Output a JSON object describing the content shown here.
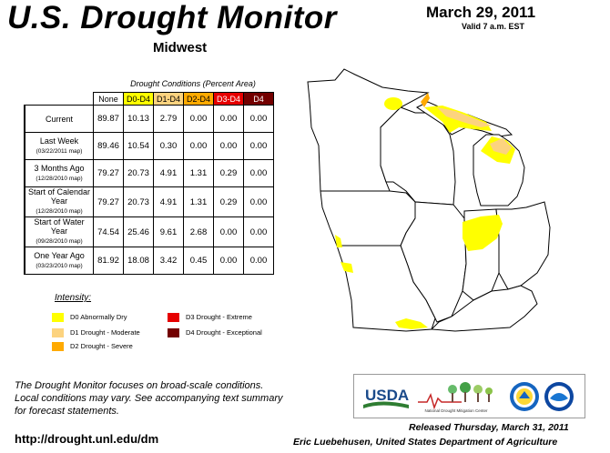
{
  "header": {
    "title": "U.S. Drought Monitor",
    "region": "Midwest",
    "date": "March 29, 2011",
    "valid": "Valid 7 a.m. EST"
  },
  "table": {
    "caption": "Drought Conditions (Percent Area)",
    "columns": [
      "None",
      "D0-D4",
      "D1-D4",
      "D2-D4",
      "D3-D4",
      "D4"
    ],
    "column_colors": [
      "#ffffff",
      "#ffff00",
      "#fcd37f",
      "#ffaa00",
      "#e60000",
      "#730000"
    ],
    "rows": [
      {
        "label": "Current",
        "sub": "",
        "values": [
          "89.87",
          "10.13",
          "2.79",
          "0.00",
          "0.00",
          "0.00"
        ]
      },
      {
        "label": "Last Week",
        "sub": "(03/22/2011 map)",
        "values": [
          "89.46",
          "10.54",
          "0.30",
          "0.00",
          "0.00",
          "0.00"
        ]
      },
      {
        "label": "3 Months Ago",
        "sub": "(12/28/2010 map)",
        "values": [
          "79.27",
          "20.73",
          "4.91",
          "1.31",
          "0.29",
          "0.00"
        ]
      },
      {
        "label": "Start of Calendar Year",
        "sub": "(12/28/2010 map)",
        "values": [
          "79.27",
          "20.73",
          "4.91",
          "1.31",
          "0.29",
          "0.00"
        ]
      },
      {
        "label": "Start of Water Year",
        "sub": "(09/28/2010 map)",
        "values": [
          "74.54",
          "25.46",
          "9.61",
          "2.68",
          "0.00",
          "0.00"
        ]
      },
      {
        "label": "One Year Ago",
        "sub": "(03/23/2010 map)",
        "values": [
          "81.92",
          "18.08",
          "3.42",
          "0.45",
          "0.00",
          "0.00"
        ]
      }
    ]
  },
  "legend": {
    "title": "Intensity:",
    "items": [
      {
        "label": "D0 Abnormally Dry",
        "color": "#ffff00"
      },
      {
        "label": "D1 Drought - Moderate",
        "color": "#fcd37f"
      },
      {
        "label": "D2 Drought - Severe",
        "color": "#ffaa00"
      },
      {
        "label": "D3 Drought - Extreme",
        "color": "#e60000"
      },
      {
        "label": "D4 Drought - Exceptional",
        "color": "#730000"
      }
    ]
  },
  "footer": {
    "note_lines": [
      "The Drought Monitor focuses on broad-scale conditions.",
      "Local conditions may vary. See accompanying text summary",
      "for forecast statements."
    ],
    "url": "http://drought.unl.edu/dm",
    "released": "Released Thursday, March 31, 2011",
    "author": "Eric Luebehusen, United States Department of Agriculture"
  },
  "logos": {
    "usda": "USDA",
    "ndmc": "National Drought Mitigation Center"
  }
}
